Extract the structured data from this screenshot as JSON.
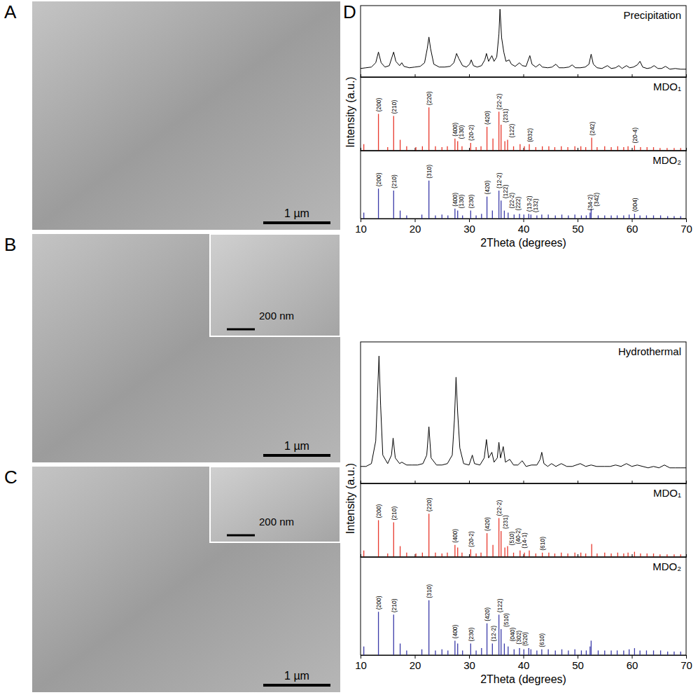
{
  "images": [
    {
      "label": "A",
      "scale_bar": "1 µm"
    },
    {
      "label": "B",
      "scale_bar": "1 µm",
      "inset_scale_bar": "200 nm"
    },
    {
      "label": "C",
      "scale_bar": "1 µm",
      "inset_scale_bar": "200 nm"
    }
  ],
  "plots_label": "D",
  "chart_data": [
    {
      "type": "line",
      "xlim": [
        10,
        70
      ],
      "xticks": [
        10,
        20,
        30,
        40,
        50,
        60,
        70
      ],
      "ylim": [
        0,
        100
      ],
      "tick_labels": false,
      "series": [
        {
          "name": "Precipitation",
          "color": "#000000",
          "x": [
            10,
            11,
            12,
            12.8,
            13.3,
            13.8,
            14.5,
            15.3,
            15.8,
            16.1,
            16.5,
            17.2,
            17.6,
            18,
            19,
            20,
            21,
            21.8,
            22.3,
            22.6,
            22.9,
            23.5,
            24.5,
            25.5,
            26.5,
            27.2,
            27.7,
            28.1,
            28.8,
            29.5,
            30.1,
            30.4,
            30.8,
            31.5,
            32.3,
            32.9,
            33.2,
            33.6,
            34.2,
            34.6,
            35.1,
            35.5,
            35.7,
            36,
            36.4,
            36.8,
            37.4,
            37.8,
            38.5,
            39.3,
            39.8,
            40.5,
            41.2,
            41.6,
            42.3,
            43,
            43.5,
            44.5,
            45.3,
            46,
            46.6,
            47.5,
            48.4,
            49,
            49.6,
            50.5,
            51.4,
            52.1,
            52.5,
            52.9,
            53.6,
            54.5,
            55.5,
            56.2,
            57,
            57.6,
            58.2,
            59,
            59.6,
            60.3,
            61,
            61.5,
            62,
            62.8,
            63.5,
            64.1,
            64.8,
            65.5,
            66.2,
            67,
            68,
            69,
            70
          ],
          "values": [
            12,
            13,
            14,
            20,
            35,
            20,
            14,
            16,
            28,
            35,
            22,
            16,
            20,
            15,
            13,
            14,
            15,
            20,
            40,
            56,
            40,
            18,
            14,
            14,
            15,
            20,
            33,
            26,
            16,
            14,
            18,
            24,
            16,
            14,
            16,
            24,
            33,
            22,
            30,
            22,
            28,
            60,
            95,
            55,
            35,
            22,
            24,
            18,
            15,
            20,
            16,
            15,
            30,
            18,
            14,
            18,
            14,
            13,
            14,
            18,
            13,
            13,
            14,
            17,
            13,
            13,
            14,
            18,
            32,
            18,
            13,
            12,
            16,
            12,
            13,
            16,
            12,
            16,
            13,
            14,
            17,
            22,
            14,
            12,
            13,
            16,
            12,
            12,
            15,
            11,
            12,
            11,
            11
          ]
        }
      ]
    },
    {
      "type": "stem",
      "ylabel": "Intensity (a.u.)",
      "xlim": [
        10,
        70
      ],
      "xticks": [
        10,
        20,
        30,
        40,
        50,
        60,
        70
      ],
      "ylim": [
        0,
        170
      ],
      "tick_labels": false,
      "series": [
        {
          "name": "MDO₁",
          "color": "#e8382c",
          "x": [
            10.6,
            13.3,
            15.0,
            16.1,
            17.3,
            18.5,
            20.2,
            21.4,
            22.6,
            23.8,
            25.0,
            26.0,
            27.4,
            27.9,
            28.7,
            30.3,
            31.3,
            32.2,
            33.3,
            34.4,
            35.5,
            35.9,
            36.6,
            37.1,
            38.2,
            39.4,
            40.2,
            41.1,
            42.3,
            43.5,
            44.7,
            45.8,
            47.0,
            48.2,
            49.5,
            50.6,
            51.5,
            52.6,
            53.6,
            55.0,
            56.2,
            57.4,
            58.5,
            59.3,
            60.5,
            61.6,
            62.8,
            64.0,
            65.2,
            66.5,
            67.8,
            69.0
          ],
          "values": [
            15,
            85,
            8,
            80,
            25,
            10,
            8,
            10,
            100,
            10,
            8,
            10,
            28,
            22,
            10,
            18,
            8,
            10,
            55,
            28,
            90,
            60,
            22,
            25,
            10,
            15,
            10,
            15,
            8,
            10,
            10,
            8,
            10,
            8,
            10,
            10,
            8,
            30,
            8,
            10,
            8,
            10,
            8,
            10,
            12,
            8,
            8,
            8,
            6,
            6,
            6,
            6
          ]
        }
      ],
      "annotations": [
        {
          "x": 13.3,
          "text": "(200)"
        },
        {
          "x": 16.1,
          "text": "(210)"
        },
        {
          "x": 22.6,
          "text": "(220)"
        },
        {
          "x": 27.4,
          "text": "(400)"
        },
        {
          "x": 27.9,
          "text": "(130)"
        },
        {
          "x": 30.3,
          "text": "(20-2)"
        },
        {
          "x": 33.3,
          "text": "(420)"
        },
        {
          "x": 35.5,
          "text": "(22-2)"
        },
        {
          "x": 35.9,
          "text": "(231)"
        },
        {
          "x": 37.1,
          "text": "(122)"
        },
        {
          "x": 41.1,
          "text": "(032)"
        },
        {
          "x": 52.6,
          "text": "(242)"
        },
        {
          "x": 60.5,
          "text": "(20-4)"
        }
      ]
    },
    {
      "type": "stem",
      "xlabel": "2Theta (degrees)",
      "xlim": [
        10,
        70
      ],
      "xticks": [
        10,
        20,
        30,
        40,
        50,
        60,
        70
      ],
      "ylim": [
        0,
        170
      ],
      "tick_labels": "x",
      "series": [
        {
          "name": "MDO₂",
          "color": "#3a3aa8",
          "x": [
            10.6,
            13.3,
            16.1,
            17.3,
            18.5,
            21.3,
            22.6,
            23.8,
            25.0,
            26.1,
            27.4,
            27.9,
            28.8,
            30.3,
            31.3,
            32.3,
            33.3,
            34.3,
            35.5,
            35.9,
            36.5,
            37.2,
            38.3,
            39.3,
            40.1,
            41.0,
            41.4,
            42.5,
            43.4,
            44.6,
            45.9,
            47.1,
            48.3,
            49.5,
            50.7,
            51.6,
            52.3,
            52.5,
            53.8,
            55.0,
            56.2,
            57.3,
            58.5,
            59.5,
            60.5,
            61.5,
            62.7,
            64.0,
            65.3,
            66.6,
            67.8,
            69.0
          ],
          "values": [
            15,
            75,
            70,
            20,
            8,
            10,
            95,
            8,
            10,
            8,
            25,
            20,
            8,
            20,
            8,
            12,
            55,
            20,
            70,
            45,
            20,
            15,
            10,
            12,
            10,
            12,
            10,
            8,
            10,
            10,
            8,
            10,
            8,
            10,
            8,
            8,
            15,
            25,
            8,
            8,
            8,
            8,
            8,
            10,
            12,
            8,
            8,
            8,
            8,
            6,
            6,
            6
          ]
        }
      ],
      "annotations": [
        {
          "x": 13.3,
          "text": "(200)"
        },
        {
          "x": 16.1,
          "text": "(210)"
        },
        {
          "x": 22.6,
          "text": "(310)"
        },
        {
          "x": 27.4,
          "text": "(400)"
        },
        {
          "x": 27.9,
          "text": "(130)"
        },
        {
          "x": 30.3,
          "text": "(230)"
        },
        {
          "x": 33.3,
          "text": "(420)"
        },
        {
          "x": 35.5,
          "text": "(12-2)"
        },
        {
          "x": 35.9,
          "text": "(122)"
        },
        {
          "x": 36.5,
          "text": "(22-2)"
        },
        {
          "x": 37.2,
          "text": "(222)"
        },
        {
          "x": 41.0,
          "text": "(13-2)"
        },
        {
          "x": 41.4,
          "text": "(132)"
        },
        {
          "x": 52.3,
          "text": "(34-2)"
        },
        {
          "x": 52.5,
          "text": "(342)"
        },
        {
          "x": 60.5,
          "text": "(004)"
        }
      ]
    },
    {
      "type": "line",
      "xlim": [
        10,
        70
      ],
      "xticks": [
        10,
        20,
        30,
        40,
        50,
        60,
        70
      ],
      "ylim": [
        0,
        100
      ],
      "tick_labels": false,
      "series": [
        {
          "name": "Hydrothermal",
          "color": "#000000",
          "x": [
            10,
            11,
            12,
            12.8,
            13.1,
            13.4,
            13.7,
            14.1,
            15,
            15.7,
            16,
            16.4,
            17.2,
            17.6,
            18.5,
            19.5,
            20.5,
            21.5,
            22.2,
            22.6,
            23,
            24,
            25,
            26,
            26.9,
            27.3,
            27.6,
            27.9,
            28.3,
            29,
            30,
            30.6,
            31,
            32,
            32.8,
            33.2,
            33.6,
            34.2,
            34.6,
            35.2,
            35.5,
            35.8,
            36.3,
            36.7,
            37.5,
            38.2,
            39,
            39.8,
            40.5,
            41.5,
            42.5,
            43.1,
            43.4,
            43.8,
            44.5,
            45.2,
            46,
            47,
            48,
            49,
            50.5,
            51.5,
            52.5,
            53.5,
            55,
            56,
            57,
            58,
            59,
            60,
            61,
            62,
            63,
            64,
            65,
            66,
            67,
            68,
            69,
            70
          ],
          "values": [
            12,
            12,
            14,
            30,
            60,
            90,
            55,
            20,
            14,
            20,
            32,
            18,
            14,
            15,
            13,
            13,
            13,
            14,
            20,
            40,
            18,
            13,
            13,
            14,
            20,
            45,
            75,
            50,
            25,
            14,
            13,
            20,
            14,
            13,
            18,
            31,
            18,
            22,
            15,
            18,
            29,
            18,
            26,
            15,
            17,
            13,
            13,
            16,
            12,
            13,
            13,
            17,
            22,
            14,
            12,
            14,
            12,
            14,
            12,
            12,
            14,
            12,
            13,
            12,
            12,
            12,
            13,
            12,
            14,
            12,
            13,
            12,
            11,
            12,
            11,
            13,
            11,
            11,
            11,
            11
          ]
        }
      ]
    },
    {
      "type": "stem",
      "ylabel": "Intensity (a.u.)",
      "xlim": [
        10,
        70
      ],
      "xticks": [
        10,
        20,
        30,
        40,
        50,
        60,
        70
      ],
      "ylim": [
        0,
        170
      ],
      "tick_labels": false,
      "series": [
        {
          "name": "MDO₁",
          "color": "#e8382c",
          "x": [
            10.6,
            13.3,
            15.0,
            16.1,
            17.3,
            18.5,
            20.2,
            21.4,
            22.6,
            23.8,
            25.0,
            26.0,
            27.4,
            27.9,
            28.7,
            30.3,
            31.3,
            32.2,
            33.3,
            34.4,
            35.5,
            35.9,
            36.6,
            37.1,
            38.2,
            39.4,
            40.2,
            41.1,
            42.3,
            43.5,
            44.7,
            45.8,
            47.0,
            48.2,
            49.5,
            50.6,
            51.5,
            52.6,
            53.6,
            55.0,
            56.2,
            57.4,
            58.5,
            59.3,
            60.5,
            61.6,
            62.8,
            64.0,
            65.2,
            66.5,
            67.8,
            69.0
          ],
          "values": [
            15,
            85,
            8,
            80,
            25,
            10,
            8,
            10,
            100,
            10,
            8,
            10,
            28,
            22,
            10,
            18,
            8,
            10,
            55,
            28,
            90,
            60,
            22,
            25,
            10,
            15,
            10,
            15,
            8,
            10,
            10,
            8,
            10,
            8,
            10,
            10,
            8,
            30,
            8,
            10,
            8,
            10,
            8,
            10,
            12,
            8,
            8,
            8,
            6,
            6,
            6,
            6
          ]
        }
      ],
      "annotations": [
        {
          "x": 13.3,
          "text": "(200)"
        },
        {
          "x": 16.1,
          "text": "(210)"
        },
        {
          "x": 22.6,
          "text": "(220)"
        },
        {
          "x": 27.4,
          "text": "(400)"
        },
        {
          "x": 30.3,
          "text": "(20-2)"
        },
        {
          "x": 33.3,
          "text": "(420)"
        },
        {
          "x": 35.5,
          "text": "(22-2)"
        },
        {
          "x": 35.9,
          "text": "(231)"
        },
        {
          "x": 36.6,
          "text": "(510)"
        },
        {
          "x": 37.1,
          "text": "(40-2)"
        },
        {
          "x": 39.4,
          "text": "(14-1)"
        },
        {
          "x": 43.5,
          "text": "(610)"
        }
      ]
    },
    {
      "type": "stem",
      "xlabel": "2Theta (degrees)",
      "xlim": [
        10,
        70
      ],
      "xticks": [
        10,
        20,
        30,
        40,
        50,
        60,
        70
      ],
      "ylim": [
        0,
        170
      ],
      "tick_labels": "x",
      "series": [
        {
          "name": "MDO₂",
          "color": "#3a3aa8",
          "x": [
            10.6,
            13.3,
            16.1,
            17.3,
            18.5,
            21.3,
            22.6,
            23.8,
            25.0,
            26.1,
            27.4,
            27.9,
            28.8,
            30.3,
            31.3,
            32.3,
            33.3,
            34.3,
            35.5,
            35.9,
            36.5,
            37.2,
            38.3,
            39.3,
            40.1,
            41.0,
            41.4,
            42.5,
            43.4,
            44.6,
            45.9,
            47.1,
            48.3,
            49.5,
            50.7,
            51.6,
            52.3,
            52.5,
            53.8,
            55.0,
            56.2,
            57.3,
            58.5,
            59.5,
            60.5,
            61.5,
            62.7,
            64.0,
            65.3,
            66.6,
            67.8,
            69.0
          ],
          "values": [
            15,
            75,
            70,
            20,
            8,
            10,
            95,
            8,
            10,
            8,
            25,
            20,
            8,
            20,
            8,
            12,
            55,
            20,
            70,
            45,
            20,
            15,
            10,
            12,
            10,
            12,
            10,
            8,
            10,
            10,
            8,
            10,
            8,
            10,
            8,
            8,
            15,
            25,
            8,
            8,
            8,
            8,
            8,
            10,
            12,
            8,
            8,
            8,
            8,
            6,
            6,
            6
          ]
        }
      ],
      "annotations": [
        {
          "x": 13.3,
          "text": "(200)"
        },
        {
          "x": 16.1,
          "text": "(210)"
        },
        {
          "x": 22.6,
          "text": "(310)"
        },
        {
          "x": 27.4,
          "text": "(400)"
        },
        {
          "x": 30.3,
          "text": "(230)"
        },
        {
          "x": 33.3,
          "text": "(420)"
        },
        {
          "x": 34.3,
          "text": "(12-2)"
        },
        {
          "x": 35.5,
          "text": "(122)"
        },
        {
          "x": 35.9,
          "text": "(510)"
        },
        {
          "x": 36.5,
          "text": "(040)"
        },
        {
          "x": 37.2,
          "text": "(302)"
        },
        {
          "x": 39.3,
          "text": "(520)"
        },
        {
          "x": 43.4,
          "text": "(610)"
        }
      ]
    }
  ]
}
